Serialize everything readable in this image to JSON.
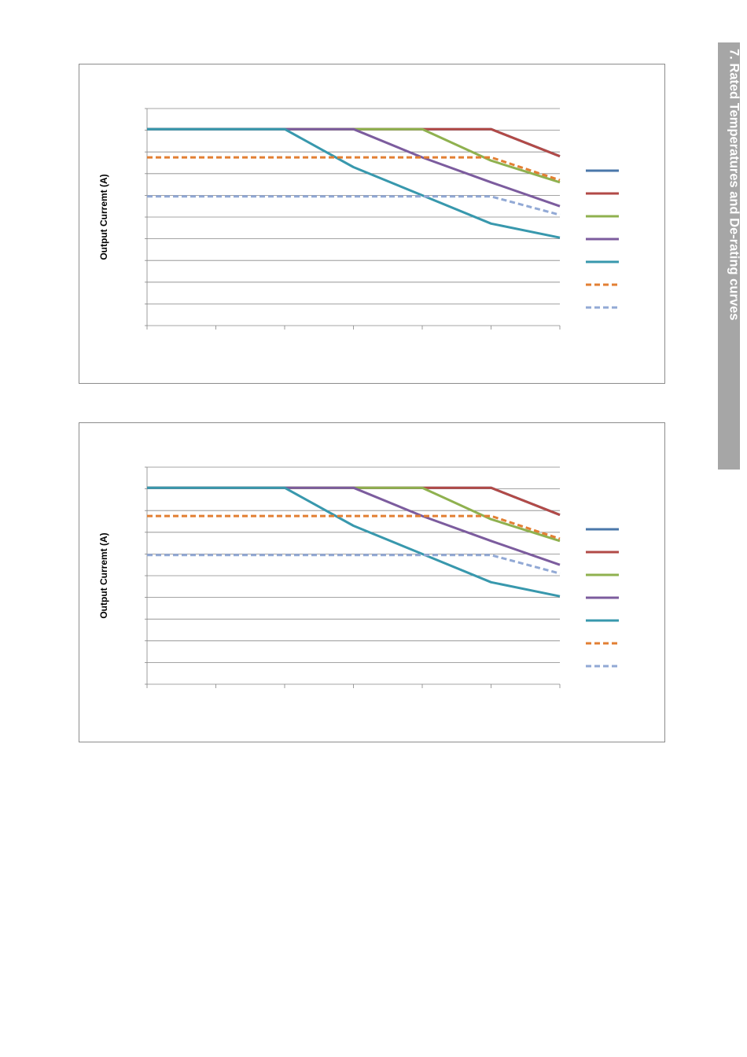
{
  "side_tab": {
    "title": "7. Rated Temperatures and De-rating curves"
  },
  "colors": {
    "grid": "#868686",
    "axis": "#868686",
    "frame": "#8c8c8c",
    "tab_background": "#a6a6a6"
  },
  "chart_data": [
    {
      "type": "line",
      "title": "",
      "xlabel": "",
      "ylabel": "Output Curremt (A)",
      "grid": true,
      "legend_position": "right",
      "x": [
        0,
        1,
        2,
        3,
        4,
        5,
        6
      ],
      "xlim": [
        0,
        6
      ],
      "ylim": [
        0,
        10
      ],
      "y_gridlines": 10,
      "series": [
        {
          "color": "#4a77aa",
          "dash": false,
          "values": [
            9.05,
            9.05,
            9.05,
            9.05,
            9.05,
            9.05,
            7.8
          ]
        },
        {
          "color": "#b24a47",
          "dash": false,
          "values": [
            9.05,
            9.05,
            9.05,
            9.05,
            9.05,
            9.05,
            7.8
          ]
        },
        {
          "color": "#8fb14f",
          "dash": false,
          "values": [
            9.05,
            9.05,
            9.05,
            9.05,
            9.05,
            7.6,
            6.6
          ]
        },
        {
          "color": "#7c5c9e",
          "dash": false,
          "values": [
            9.05,
            9.05,
            9.05,
            9.05,
            7.75,
            6.6,
            5.5
          ]
        },
        {
          "color": "#3898ad",
          "dash": false,
          "values": [
            9.05,
            9.05,
            9.05,
            7.3,
            6.0,
            4.7,
            4.05
          ]
        },
        {
          "color": "#e27f33",
          "dash": true,
          "values": [
            7.75,
            7.75,
            7.75,
            7.75,
            7.75,
            7.75,
            6.7
          ]
        },
        {
          "color": "#92a9d5",
          "dash": true,
          "values": [
            5.95,
            5.95,
            5.95,
            5.95,
            5.95,
            5.95,
            5.1
          ]
        }
      ]
    },
    {
      "type": "line",
      "title": "",
      "xlabel": "",
      "ylabel": "Output Curremt (A)",
      "grid": true,
      "legend_position": "right",
      "x": [
        0,
        1,
        2,
        3,
        4,
        5,
        6
      ],
      "xlim": [
        0,
        6
      ],
      "ylim": [
        0,
        10
      ],
      "y_gridlines": 10,
      "series": [
        {
          "color": "#4a77aa",
          "dash": false,
          "values": [
            9.05,
            9.05,
            9.05,
            9.05,
            9.05,
            9.05,
            7.8
          ]
        },
        {
          "color": "#b24a47",
          "dash": false,
          "values": [
            9.05,
            9.05,
            9.05,
            9.05,
            9.05,
            9.05,
            7.8
          ]
        },
        {
          "color": "#8fb14f",
          "dash": false,
          "values": [
            9.05,
            9.05,
            9.05,
            9.05,
            9.05,
            7.6,
            6.6
          ]
        },
        {
          "color": "#7c5c9e",
          "dash": false,
          "values": [
            9.05,
            9.05,
            9.05,
            9.05,
            7.75,
            6.6,
            5.5
          ]
        },
        {
          "color": "#3898ad",
          "dash": false,
          "values": [
            9.05,
            9.05,
            9.05,
            7.3,
            6.0,
            4.7,
            4.05
          ]
        },
        {
          "color": "#e27f33",
          "dash": true,
          "values": [
            7.75,
            7.75,
            7.75,
            7.75,
            7.75,
            7.75,
            6.7
          ]
        },
        {
          "color": "#92a9d5",
          "dash": true,
          "values": [
            5.95,
            5.95,
            5.95,
            5.95,
            5.95,
            5.95,
            5.1
          ]
        }
      ]
    }
  ]
}
